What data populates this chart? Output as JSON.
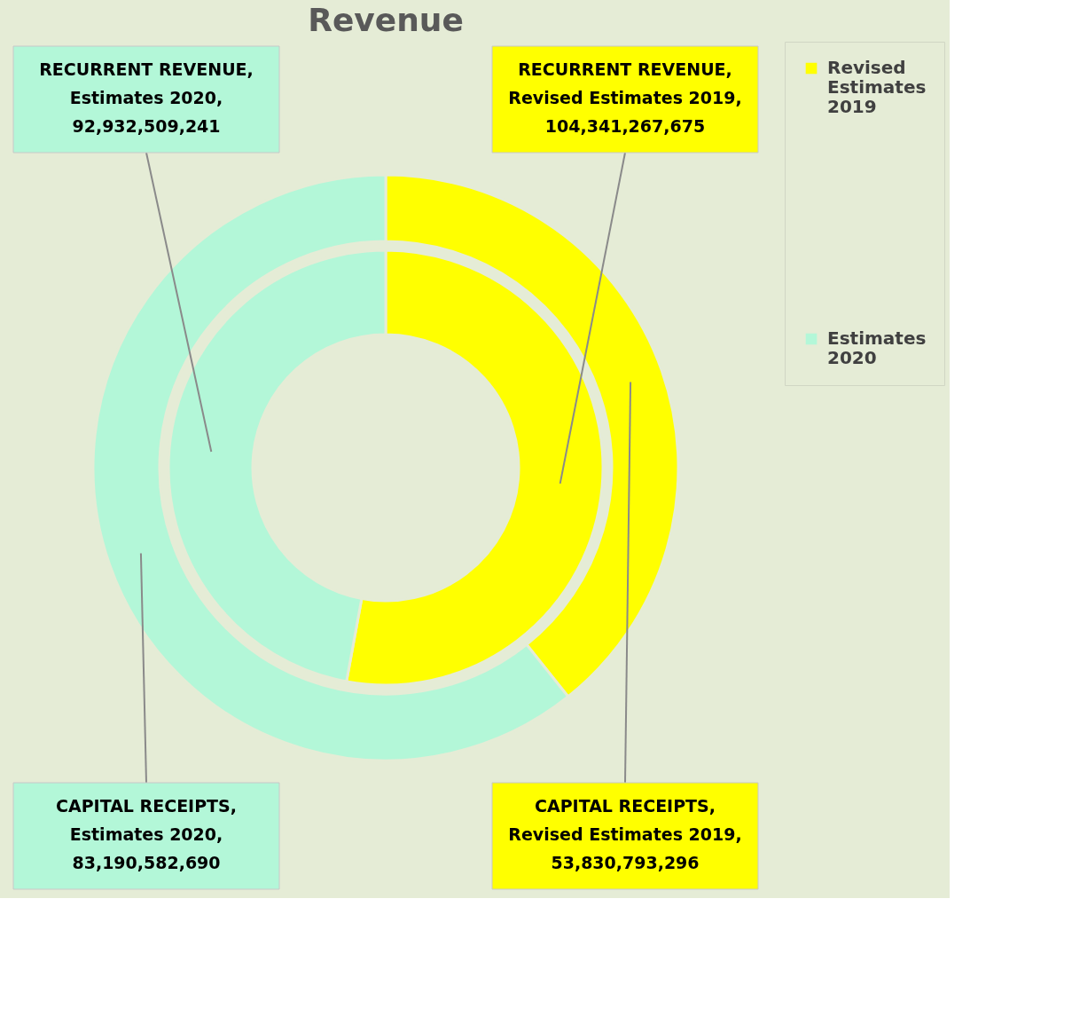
{
  "chart_data": {
    "type": "donut",
    "title": "Revenue",
    "categories": [
      "Revised Estimates 2019",
      "Estimates 2020"
    ],
    "colors": [
      "#ffff00",
      "#b3f7d8"
    ],
    "series": [
      {
        "values": [
          104341267675,
          92932509241
        ],
        "value_labels": [
          "RECURRENT REVENUE,\nRevised Estimates 2019,\n104,341,267,675",
          "RECURRENT REVENUE,\nEstimates 2020,\n92,932,509,241"
        ]
      },
      {
        "values": [
          53830793296,
          83190582690
        ],
        "value_labels": [
          "CAPITAL RECEIPTS,\nRevised Estimates 2019,\n53,830,793,296",
          "CAPITAL RECEIPTS,\nEstimates 2020,\n83,190,582,690"
        ]
      }
    ],
    "legend": "right"
  }
}
